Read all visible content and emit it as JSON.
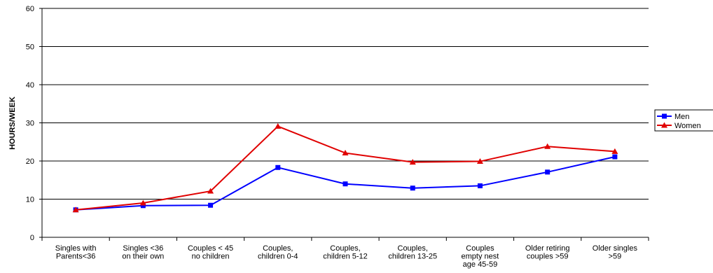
{
  "chart_data": {
    "type": "line",
    "title": "",
    "xlabel": "",
    "ylabel": "HOURS/WEEK",
    "ylim": [
      0,
      60
    ],
    "yticks": [
      0,
      10,
      20,
      30,
      40,
      50,
      60
    ],
    "grid": true,
    "legend_position": "right",
    "categories": [
      [
        "Singles with",
        "Parents<36"
      ],
      [
        "Singles  <36",
        "on their own"
      ],
      [
        "Couples < 45",
        "no children"
      ],
      [
        "Couples,",
        "children 0-4"
      ],
      [
        "Couples,",
        "children 5-12"
      ],
      [
        "Couples,",
        "children 13-25"
      ],
      [
        "Couples",
        "empty nest",
        "age 45-59"
      ],
      [
        "Older retiring",
        "couples >59"
      ],
      [
        "Older singles",
        ">59"
      ]
    ],
    "series": [
      {
        "name": "Men",
        "color": "#0000ff",
        "marker": "square",
        "values": [
          7.2,
          8.3,
          8.4,
          18.3,
          14.0,
          12.9,
          13.5,
          17.1,
          21.1
        ]
      },
      {
        "name": "Women",
        "color": "#e00000",
        "marker": "triangle",
        "values": [
          7.2,
          9.0,
          12.1,
          29.1,
          22.1,
          19.7,
          19.9,
          23.8,
          22.5
        ]
      }
    ]
  }
}
